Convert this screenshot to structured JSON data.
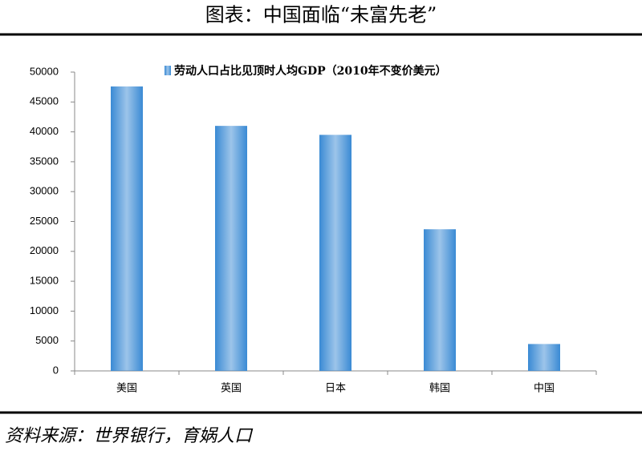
{
  "chart_data": {
    "type": "bar",
    "title": "图表：中国面临“未富先老”",
    "source": "资料来源：世界银行，育娲人口",
    "categories": [
      "美国",
      "英国",
      "日本",
      "韩国",
      "中国"
    ],
    "series": [
      {
        "name": "劳动人口占比见顶时人均GDP（2010年不变价美元）",
        "color": "#3a8ad4",
        "values": [
          47600,
          41000,
          39500,
          23700,
          4500
        ]
      }
    ],
    "ylim": [
      0,
      50000
    ],
    "yticks": [
      0,
      5000,
      10000,
      15000,
      20000,
      25000,
      30000,
      35000,
      40000,
      45000,
      50000
    ],
    "legend": "top"
  }
}
